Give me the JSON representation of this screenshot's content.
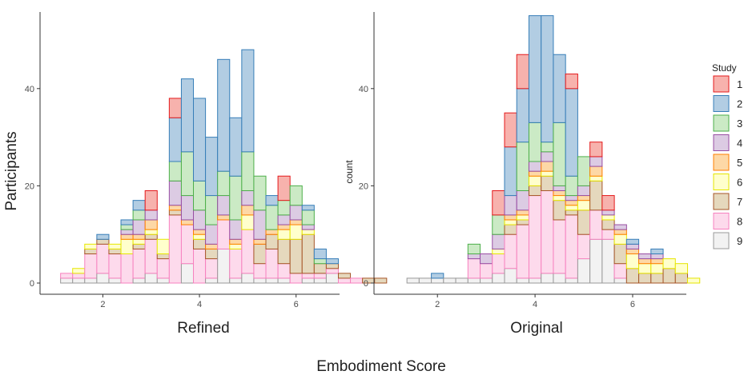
{
  "xlabel": "Embodiment Score",
  "legend": {
    "title": "Study",
    "entries": [
      "1",
      "2",
      "3",
      "4",
      "5",
      "6",
      "7",
      "8",
      "9"
    ],
    "fills": [
      "#f7b2ad",
      "#b2cde3",
      "#cbeac5",
      "#dccbe3",
      "#fdd8a6",
      "#ffffcc",
      "#e5d8bd",
      "#fddaec",
      "#f2f2f2"
    ],
    "strokes": [
      "#e41a1c",
      "#377eb8",
      "#4daf4a",
      "#984ea3",
      "#ff7f00",
      "#e6e600",
      "#a65628",
      "#f781bf",
      "#999999"
    ]
  },
  "chart_data": [
    {
      "type": "bar",
      "title": "Refined",
      "ylabel": "Participants",
      "xlim": [
        0.7,
        6.9
      ],
      "ylim": [
        0,
        56
      ],
      "xticks": [
        2,
        4,
        6
      ],
      "yticks": [
        0,
        20,
        40
      ],
      "bin_width": 0.25,
      "bin_start": 1.125,
      "stack_order": [
        "9",
        "8",
        "7",
        "6",
        "5",
        "4",
        "3",
        "2",
        "1"
      ],
      "bins": [
        {
          "c": [
            0,
            0,
            0,
            0,
            0,
            0,
            0,
            1,
            1
          ]
        },
        {
          "c": [
            0,
            0,
            0,
            0,
            0,
            1,
            0,
            1,
            1
          ]
        },
        {
          "c": [
            0,
            0,
            0,
            0,
            0,
            1,
            1,
            5,
            1
          ]
        },
        {
          "c": [
            0,
            1,
            0,
            0,
            0,
            0,
            1,
            6,
            2
          ]
        },
        {
          "c": [
            0,
            0,
            0,
            0,
            0,
            1,
            1,
            5,
            1
          ]
        },
        {
          "c": [
            0,
            1,
            1,
            1,
            1,
            3,
            0,
            6,
            0
          ]
        },
        {
          "c": [
            0,
            2,
            2,
            3,
            1,
            1,
            1,
            6,
            1
          ]
        },
        {
          "c": [
            4,
            0,
            0,
            2,
            2,
            1,
            1,
            7,
            2
          ]
        },
        {
          "c": [
            0,
            0,
            0,
            0,
            0,
            3,
            1,
            4,
            1
          ]
        },
        {
          "c": [
            4,
            9,
            4,
            5,
            1,
            0,
            1,
            14,
            0
          ]
        },
        {
          "c": [
            0,
            15,
            9,
            5,
            1,
            0,
            0,
            8,
            4
          ]
        },
        {
          "c": [
            0,
            17,
            6,
            4,
            1,
            1,
            2,
            7,
            0
          ]
        },
        {
          "c": [
            0,
            12,
            6,
            4,
            1,
            0,
            2,
            4,
            1
          ]
        },
        {
          "c": [
            0,
            23,
            5,
            4,
            1,
            0,
            0,
            6,
            7
          ]
        },
        {
          "c": [
            0,
            12,
            9,
            4,
            1,
            1,
            0,
            6,
            1
          ]
        },
        {
          "c": [
            0,
            21,
            8,
            3,
            2,
            3,
            0,
            9,
            2
          ]
        },
        {
          "c": [
            0,
            0,
            7,
            6,
            1,
            0,
            4,
            3,
            1
          ]
        },
        {
          "c": [
            0,
            2,
            5,
            0,
            1,
            0,
            3,
            6,
            1
          ]
        },
        {
          "c": [
            5,
            0,
            3,
            2,
            1,
            2,
            5,
            3,
            1
          ]
        },
        {
          "c": [
            0,
            0,
            4,
            3,
            1,
            3,
            7,
            2,
            0
          ]
        },
        {
          "c": [
            0,
            1,
            3,
            1,
            0,
            1,
            8,
            1,
            1
          ]
        },
        {
          "c": [
            0,
            2,
            1,
            0,
            0,
            0,
            2,
            1,
            1
          ]
        },
        {
          "c": [
            0,
            1,
            0,
            0,
            0,
            0,
            1,
            1,
            2
          ]
        },
        {
          "c": [
            0,
            0,
            0,
            0,
            0,
            0,
            1,
            1,
            0
          ]
        },
        {
          "c": [
            0,
            0,
            0,
            0,
            0,
            0,
            0,
            1,
            0
          ]
        },
        {
          "c": [
            0,
            0,
            0,
            0,
            0,
            0,
            1,
            0,
            0
          ]
        },
        {
          "c": [
            0,
            0,
            0,
            0,
            0,
            0,
            1,
            0,
            0
          ]
        }
      ]
    },
    {
      "type": "bar",
      "title": "Original",
      "ylabel": "count",
      "xlim": [
        0.7,
        7.1
      ],
      "ylim": [
        0,
        56
      ],
      "xticks": [
        2,
        4,
        6
      ],
      "yticks": [
        0,
        20,
        40
      ],
      "bin_width": 0.25,
      "bin_start": 1.125,
      "stack_order": [
        "9",
        "8",
        "7",
        "6",
        "5",
        "4",
        "3",
        "2",
        "1"
      ],
      "bins": [
        {
          "c": [
            0,
            0,
            0,
            0,
            0,
            0,
            0,
            0,
            0
          ]
        },
        {
          "c": [
            0,
            0,
            0,
            0,
            0,
            0,
            0,
            0,
            1
          ]
        },
        {
          "c": [
            0,
            0,
            0,
            0,
            0,
            0,
            0,
            0,
            1
          ]
        },
        {
          "c": [
            0,
            1,
            0,
            0,
            0,
            0,
            0,
            0,
            1
          ]
        },
        {
          "c": [
            0,
            0,
            0,
            0,
            0,
            0,
            0,
            0,
            1
          ]
        },
        {
          "c": [
            0,
            0,
            0,
            0,
            0,
            0,
            0,
            0,
            1
          ]
        },
        {
          "c": [
            0,
            0,
            2,
            1,
            0,
            0,
            0,
            4,
            1
          ]
        },
        {
          "c": [
            0,
            0,
            0,
            2,
            0,
            0,
            0,
            3,
            1
          ]
        },
        {
          "c": [
            5,
            0,
            4,
            3,
            0,
            1,
            0,
            4,
            2
          ]
        },
        {
          "c": [
            7,
            10,
            0,
            4,
            1,
            1,
            2,
            7,
            3
          ]
        },
        {
          "c": [
            7,
            11,
            10,
            4,
            1,
            1,
            1,
            11,
            1
          ]
        },
        {
          "c": [
            0,
            22,
            8,
            2,
            1,
            2,
            2,
            17,
            1
          ]
        },
        {
          "c": [
            0,
            26,
            2,
            2,
            2,
            1,
            3,
            17,
            2
          ]
        },
        {
          "c": [
            0,
            14,
            13,
            1,
            1,
            1,
            4,
            11,
            2
          ]
        },
        {
          "c": [
            3,
            18,
            4,
            1,
            1,
            1,
            1,
            13,
            1
          ]
        },
        {
          "c": [
            0,
            0,
            6,
            2,
            1,
            2,
            5,
            5,
            5
          ]
        },
        {
          "c": [
            3,
            0,
            0,
            2,
            2,
            1,
            6,
            6,
            9
          ]
        },
        {
          "c": [
            3,
            0,
            0,
            1,
            0,
            1,
            2,
            2,
            9
          ]
        },
        {
          "c": [
            0,
            0,
            0,
            1,
            1,
            2,
            4,
            3,
            1
          ]
        },
        {
          "c": [
            0,
            1,
            0,
            1,
            1,
            3,
            3,
            0,
            0
          ]
        },
        {
          "c": [
            0,
            0,
            0,
            1,
            1,
            2,
            2,
            0,
            0
          ]
        },
        {
          "c": [
            0,
            1,
            0,
            1,
            1,
            2,
            2,
            0,
            0
          ]
        },
        {
          "c": [
            0,
            0,
            0,
            0,
            0,
            2,
            3,
            0,
            0
          ]
        },
        {
          "c": [
            0,
            0,
            0,
            0,
            0,
            2,
            2,
            0,
            0
          ]
        },
        {
          "c": [
            0,
            0,
            0,
            0,
            0,
            1,
            0,
            0,
            0
          ]
        }
      ]
    }
  ]
}
